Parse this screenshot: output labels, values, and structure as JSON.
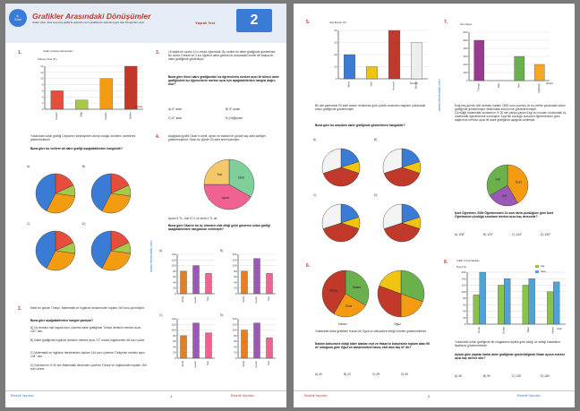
{
  "header": {
    "grade": "6.\nSınıf",
    "title": "Grafikler Arasındaki Dönüşümler",
    "subtitle": "Verilen sütun, daire veya çizgi grafiği ile gösterilen ve bu grafiklerden arasında uygun olan dönüşümleri yapar.",
    "test_label": "Yaprak Test",
    "test_number": "2"
  },
  "q1": {
    "num": "1.",
    "graph_label": "Grafik: Kırtasiye Harcamaları",
    "ylabel": "Ödenen Ücret (TL)",
    "xlabel": "Ürünler",
    "text": "Yukarıdaki sütun grafiği Ceyda'nın kırtasiyeden almış olduğu ürünlerin ücretlerini göstermektedir.",
    "question": "Buna göre bu verilere ait daire grafiği aşağıdakilerden hangisidir?",
    "opts": [
      "A)",
      "B)",
      "C)",
      "D)"
    ],
    "opt_graph": "Grafik: Kırtasiye Harcaması"
  },
  "q2": {
    "num": "2.",
    "text": "Mete bir günde Türkçe, Matematik ve İngilizce derslerinden toplam 240 soru çözmüştür.",
    "question": "Buna göre aşağıdakilerden hangisi yanlıştır?",
    "options": [
      "A) Üç dersten eşit sayıda soru çözerse daire grafiğinde Türkçe dersinin merkez açısı 120° olur.",
      "B) Daire grafiğinde İngilizce dersinin merkez açısı 72° olursa İngilizceden 48 soru çözer.",
      "C) Matematik ve İngilizce derslerinden toplam 144 soru çözerse Türkçenin merkez açısı 144° olur.",
      "D) Sorularının % 30 sini Matematik dersinden çözerse Türkçe ve İngilizceden toplam 160 soru çözer."
    ]
  },
  "q3": {
    "num": "3.",
    "text": "16 kişilik bir sınıfın 10 u erkek öğrencidir. Bu veriler bir daire grafiğinde gösterilirse; Bu sınıfa 3 erkek ve 3 kız öğrenci daha gelirse bu durumdaki veriler de başka bir daire grafiğinde gösteriliyor.",
    "question": "Buna göre ikinci daire grafiğindeki kız öğrencilerin merkez açısı ile birinci daire grafiğindeki kız öğrencilerin merkez açısı için aşağıdakilerden hangisi doğru olur?",
    "options": [
      "A) 6° artar",
      "B) 5° azalır",
      "C) 6° artar",
      "D) Değişmez"
    ]
  },
  "q4": {
    "num": "4.",
    "text": "Aşağıdaki grafik Okan'ın simit, ayran ve tosttan bir günde kaç adet sattığını göstermektedir. Okan bu günde 20 adet simit satmıştır.",
    "pie_labels": [
      "Simit",
      "Ayran",
      "Tost",
      "150°"
    ],
    "text2": "Ayran 5 TL, tost 6 TL ve simit 4 TL dir.",
    "question": "Buna göre Okan'ın bu üç üründen elde ettiği geliri gösteren sütun grafiği aşağıdakilerden hangisinde verilmiştir?",
    "opts": [
      "A)",
      "B)",
      "C)",
      "D)"
    ],
    "ylabel": "Gelir (TL)"
  },
  "q5": {
    "num": "5.",
    "ylabel": "Ateş Boyları (%)",
    "xlabel": "Renkler",
    "categories": [
      "Mavi",
      "Sarı",
      "Kırmızı",
      "Beyaz"
    ],
    "text": "Bir site gelendeki 90 adet aracın renklerine göre yüzde cinsinden dağılımı yukarıdaki sütun grafiğinde gösterilmiştir.",
    "question": "Buna göre bu araçların daire grafiğinde gösterilmesi hangisidir?",
    "opts": [
      "A)",
      "B)",
      "C)",
      "D)"
    ],
    "opt_graph": "Grafik: Renklerine Göre Araçlar"
  },
  "q6": {
    "num": "6.",
    "pie1": [
      "Salata",
      "Elma",
      "Havuç",
      "150°"
    ],
    "pie2": [
      "Salata",
      "Sogan",
      "110°",
      "Biber"
    ],
    "names": [
      "Hasan",
      "Oğuz"
    ],
    "text": "Yukarıdaki daire grafikleri Hasan ile Oğuz'un bahçesine ektiği ürünleri göstermektedir.",
    "question": "İkisinin bahçesine ektiği biber alanları eşit ve Hasan'ın bahçesinin toplam alanı 96 m² olduğuna göre Oğuz'un bahçesindeki havuç ekili alan kaç m² dir?",
    "options": [
      "A) 20",
      "B) 22",
      "C) 28",
      "D) 30"
    ]
  },
  "q7": {
    "num": "7.",
    "ylabel": "Soru Sayısı",
    "xlabel": "Dersler",
    "categories": [
      "Türkçe",
      "Mat",
      "Fen",
      "İngilizce"
    ],
    "text": "Ezgi beş günde dört dersten toplam 1500 soru çözmüş ve bu veriler yukarıdaki sütun grafiğinde gösterilmiştir. Matematik sütunu ise gösterilmemiştir.\nÇözdüğü matematik sorularının % 30 sini yanlış yapan Ezgi bu soruları okulundaki üç matematik öğretmenine sormuştur. Ezgi'nin sorduğu soruların öğretmenlere göre dağılımını merkez açısı ile daire grafiğinde aşağıda verilmiştir.",
    "pie_labels": [
      "İzzet",
      "Elif",
      "Gül",
      "90°",
      "150°"
    ],
    "question": "İzzet Öğretmen, Elife Öğretmenden 14 soru fazla çözdüğüne göre İzzet Öğretmenin çözdüğü soruların merkez açısı kaç derecedir?",
    "options": [
      "A) 108°",
      "B) 120°",
      "C) 144°",
      "D) 150°"
    ]
  },
  "q8": {
    "num": "8.",
    "graph_label": "Grafik: Kuzuk Satışları",
    "ylabel": "Fiyat (TL)",
    "xlabel": "Aylar",
    "legend": [
      "Alış",
      "Satış"
    ],
    "categories": [
      "Ocak",
      "Şubat",
      "Mart",
      "Nisan"
    ],
    "text": "Yukarıdaki sütun grafiğinde bir mağazanın aylara göre aldığı ve sattığı kazakların fiyatlarını göstermektedir.",
    "question": "Aylara göre yapılan kârlar daire grafiğinde gösterildiğinde Nisan ayının merkez açısı kaç derece olur?",
    "options": [
      "A) 45",
      "B) 90",
      "C) 135",
      "D) 180"
    ]
  },
  "footer": {
    "page1": "1",
    "page2": "2",
    "site": "www.dersmatik.com",
    "brand": "Eksenli Yayınları"
  },
  "chart_data": [
    {
      "type": "bar",
      "title": "Grafik: Kırtasiye Harcamaları",
      "ylabel": "Ödenen Ücret (TL)",
      "xlabel": "Ürünler",
      "categories": [
        "Kalem",
        "Silgi",
        "Kalem",
        "Defter"
      ],
      "values": [
        6,
        3,
        10,
        14
      ],
      "ylim": [
        0,
        14
      ]
    },
    {
      "type": "pie",
      "title": "",
      "categories": [
        "Simit",
        "Ayran",
        "Tost"
      ],
      "values": [
        120,
        150,
        90
      ]
    },
    {
      "type": "bar",
      "title": "",
      "ylabel": "Ateş Boyları (%)",
      "xlabel": "Renkler",
      "categories": [
        "Mavi",
        "Sarı",
        "Kırmızı",
        "Beyaz"
      ],
      "values": [
        20,
        10,
        40,
        30
      ],
      "ylim": [
        0,
        40
      ]
    },
    {
      "type": "bar",
      "title": "",
      "ylabel": "Soru Sayısı",
      "xlabel": "Dersler",
      "categories": [
        "Türkçe",
        "Mat",
        "Fen",
        "İngilizce"
      ],
      "values": [
        500,
        0,
        300,
        200
      ],
      "ylim": [
        0,
        600
      ]
    },
    {
      "type": "bar",
      "title": "Grafik: Kuzuk Satışları",
      "ylabel": "Fiyat (TL)",
      "xlabel": "Aylar",
      "categories": [
        "Ocak",
        "Şubat",
        "Mart",
        "Nisan"
      ],
      "series": [
        {
          "name": "Alış",
          "values": [
            90,
            120,
            120,
            100
          ]
        },
        {
          "name": "Satış",
          "values": [
            160,
            140,
            140,
            130
          ]
        }
      ],
      "ylim": [
        0,
        160
      ]
    }
  ],
  "colors": {
    "accent": "#c0392b",
    "blue": "#3a7bd5",
    "header_bg": "#e8eef7"
  }
}
